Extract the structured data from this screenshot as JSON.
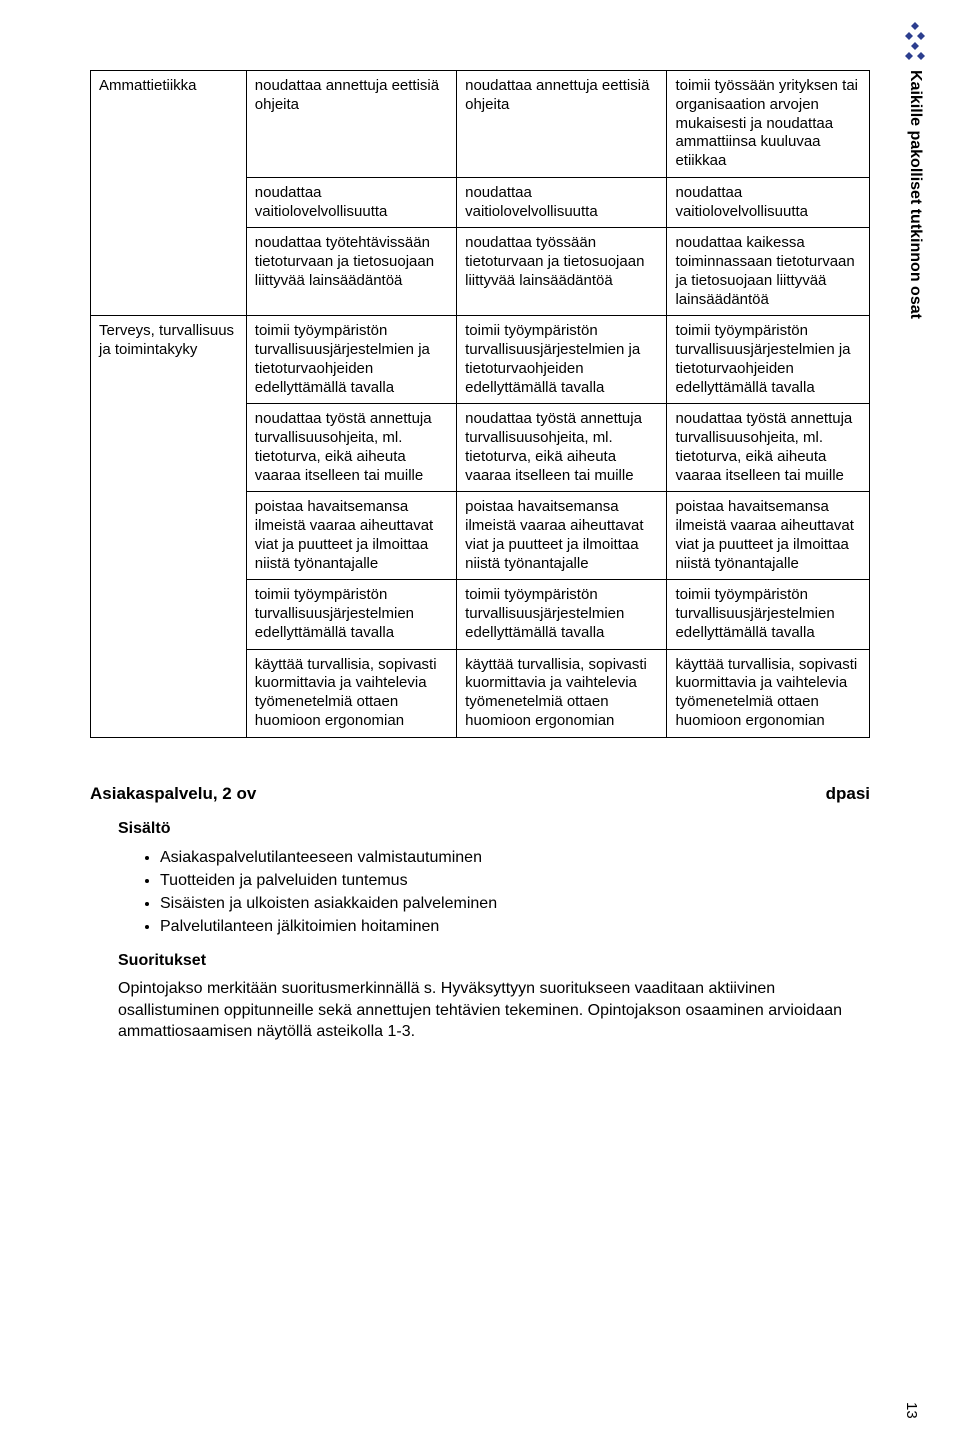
{
  "side_header": "Kaikille pakolliset tutkinnon osat",
  "page_number": "13",
  "rows": [
    {
      "rowcat": "Ammattietiikka",
      "rowspan": 3,
      "cells": [
        "noudattaa annettuja eettisiä ohjeita",
        "noudattaa annettuja eettisiä ohjeita",
        "toimii työssään yrityksen tai organisaation arvojen mukaisesti ja noudattaa ammattiinsa kuuluvaa etiikkaa"
      ]
    },
    {
      "cells": [
        "noudattaa vaitiolovelvollisuutta",
        "noudattaa vaitiolovelvollisuutta",
        "noudattaa vaitiolovelvollisuutta"
      ]
    },
    {
      "cells": [
        "noudattaa työtehtävissään tietoturvaan ja tietosuojaan liittyvää lainsäädäntöä",
        "noudattaa työssään tietoturvaan ja tietosuojaan liittyvää lainsäädäntöä",
        "noudattaa kaikessa toiminnassaan tietoturvaan ja tietosuojaan liittyvää lainsäädäntöä"
      ]
    },
    {
      "rowcat": "Terveys, turvallisuus ja toimintakyky",
      "rowspan": 5,
      "cells": [
        "toimii työympäristön turvallisuusjärjestelmien ja tietoturvaohjeiden edellyttämällä tavalla",
        "toimii työympäristön turvallisuusjärjestelmien ja tietoturvaohjeiden edellyttämällä tavalla",
        "toimii työympäristön turvallisuusjärjestelmien ja tietoturvaohjeiden edellyttämällä tavalla"
      ]
    },
    {
      "cells": [
        "noudattaa työstä annettuja turvallisuusohjeita, ml. tietoturva, eikä aiheuta vaaraa itselleen tai muille",
        "noudattaa työstä annettuja turvallisuusohjeita, ml. tietoturva, eikä aiheuta vaaraa itselleen tai muille",
        "noudattaa työstä annettuja turvallisuusohjeita, ml. tietoturva, eikä aiheuta vaaraa itselleen tai muille"
      ]
    },
    {
      "cells": [
        "poistaa havaitsemansa ilmeistä vaaraa aiheuttavat viat ja puutteet ja ilmoittaa niistä työnantajalle",
        "poistaa havaitsemansa ilmeistä vaaraa aiheuttavat viat ja puutteet ja ilmoittaa niistä työnantajalle",
        "poistaa havaitsemansa ilmeistä vaaraa aiheuttavat viat ja puutteet ja ilmoittaa niistä työnantajalle"
      ]
    },
    {
      "cells": [
        "toimii työympäristön turvallisuusjärjestelmien edellyttämällä tavalla",
        "toimii työympäristön turvallisuusjärjestelmien edellyttämällä tavalla",
        "toimii työympäristön turvallisuusjärjestelmien edellyttämällä tavalla"
      ]
    },
    {
      "cells": [
        "käyttää turvallisia, sopivasti kuormittavia ja vaihtelevia työmenetelmiä ottaen huomioon ergonomian",
        "käyttää turvallisia, sopivasti kuormittavia ja vaihtelevia työmenetelmiä ottaen huomioon ergonomian",
        "käyttää turvallisia, sopivasti kuormittavia ja vaihtelevia työmenetelmiä ottaen huomioon ergonomian"
      ]
    }
  ],
  "section": {
    "title": "Asiakaspalvelu, 2 ov",
    "code": "dpasi",
    "contents_label": "Sisältö",
    "bullets": [
      "Asiakaspalvelutilanteeseen valmistautuminen",
      "Tuotteiden ja palveluiden tuntemus",
      "Sisäisten ja ulkoisten asiakkaiden palveleminen",
      "Palvelutilanteen jälkitoimien hoitaminen"
    ],
    "perf_label": "Suoritukset",
    "perf_text": "Opintojakso merkitään suoritusmerkinnällä s. Hyväksyttyyn suoritukseen vaaditaan aktiivinen osallistuminen oppitunneille sekä annettujen tehtävien tekeminen. Opintojakson osaaminen arvioidaan ammattiosaamisen näytöllä asteikolla 1-3."
  },
  "logo_color": "#2c3e8f"
}
